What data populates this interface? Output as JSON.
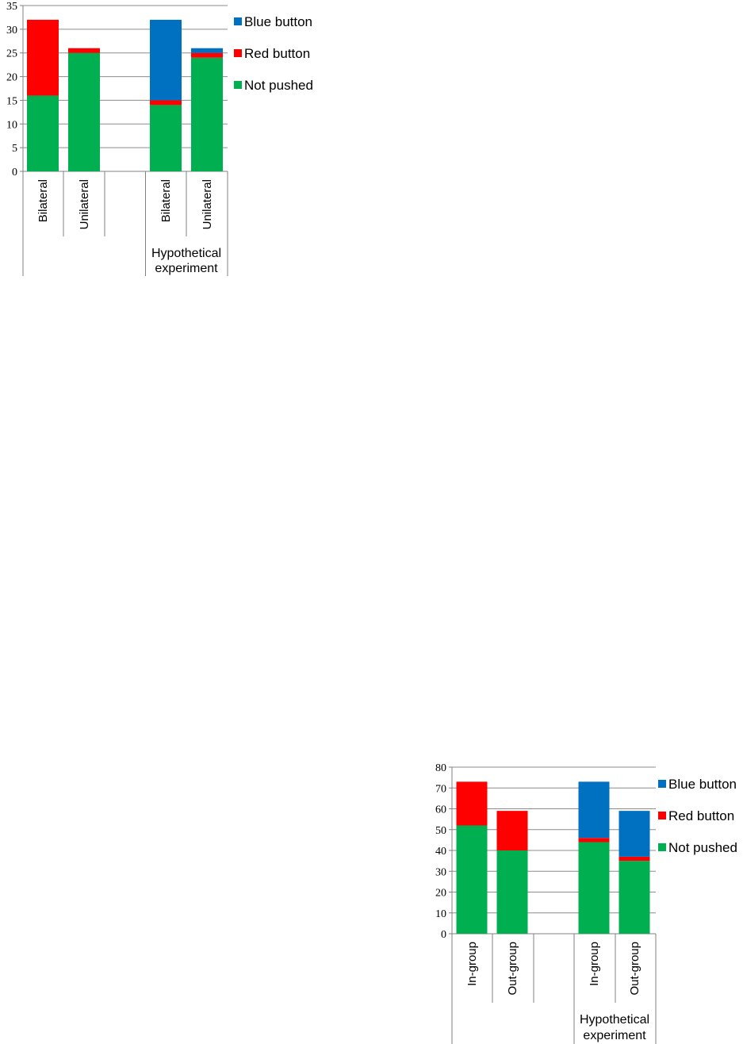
{
  "legend": [
    {
      "label": "Blue button",
      "color": "#0070c0"
    },
    {
      "label": "Red button",
      "color": "#ff0000"
    },
    {
      "label": "Not pushed",
      "color": "#00b050"
    }
  ],
  "chart_data": [
    {
      "type": "bar",
      "stacked": true,
      "grid": true,
      "legend_position": "right",
      "ylim": [
        0,
        35
      ],
      "yticks": [
        0,
        5,
        10,
        15,
        20,
        25,
        30,
        35
      ],
      "categories": [
        "Bilateral",
        "Unilateral",
        "",
        "Bilateral",
        "Unilateral"
      ],
      "group_labels": [
        "",
        "Hypothetical experiment"
      ],
      "series": [
        {
          "name": "Not pushed",
          "color": "#00b050",
          "values": [
            16,
            25,
            null,
            14,
            24
          ]
        },
        {
          "name": "Red button",
          "color": "#ff0000",
          "values": [
            16,
            1,
            null,
            1,
            1
          ]
        },
        {
          "name": "Blue button",
          "color": "#0070c0",
          "values": [
            0,
            0,
            null,
            17,
            1
          ]
        }
      ]
    },
    {
      "type": "bar",
      "stacked": true,
      "grid": true,
      "legend_position": "right",
      "ylim": [
        0,
        80
      ],
      "yticks": [
        0,
        10,
        20,
        30,
        40,
        50,
        60,
        70,
        80
      ],
      "categories": [
        "In-group",
        "Out-group",
        "",
        "In-group",
        "Out-group"
      ],
      "group_labels": [
        "",
        "Hypothetical experiment"
      ],
      "series": [
        {
          "name": "Not pushed",
          "color": "#00b050",
          "values": [
            52,
            40,
            null,
            44,
            35
          ]
        },
        {
          "name": "Red button",
          "color": "#ff0000",
          "values": [
            21,
            19,
            null,
            2,
            2
          ]
        },
        {
          "name": "Blue button",
          "color": "#0070c0",
          "values": [
            0,
            0,
            null,
            27,
            22
          ]
        }
      ]
    }
  ]
}
